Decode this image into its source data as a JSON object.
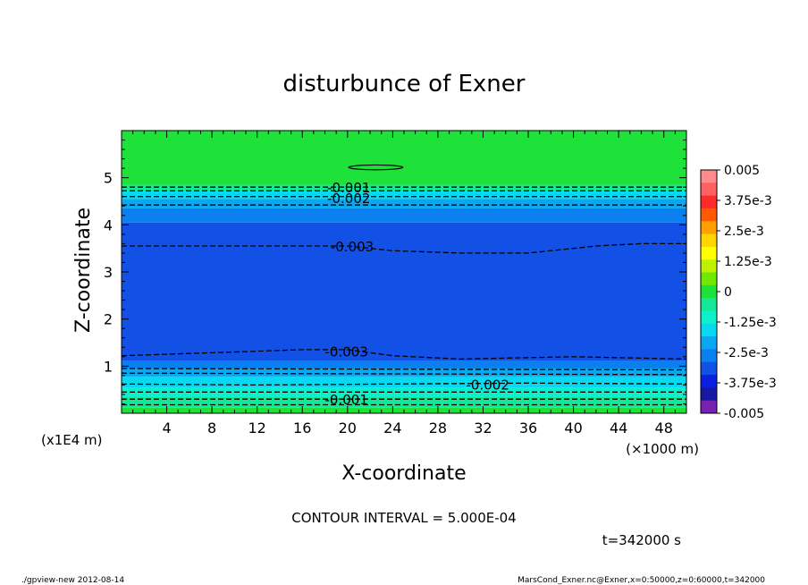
{
  "chart_data": {
    "type": "heatmap",
    "title": "disturbunce of Exner",
    "xlabel": "X-coordinate",
    "ylabel": "Z-coordinate",
    "x_unit": "(×1000 m)",
    "y_unit": "(x1E4 m)",
    "xlim": [
      0,
      50
    ],
    "ylim": [
      0,
      6
    ],
    "x_ticks": [
      4,
      8,
      12,
      16,
      20,
      24,
      28,
      32,
      36,
      40,
      44,
      48
    ],
    "y_ticks": [
      1,
      2,
      3,
      4,
      5
    ],
    "x_tick_labels": [
      "4",
      "8",
      "12",
      "16",
      "20",
      "24",
      "28",
      "32",
      "36",
      "40",
      "44",
      "48"
    ],
    "y_tick_labels": [
      "1",
      "2",
      "3",
      "4",
      "5"
    ],
    "layers": [
      {
        "z_from": 0.0,
        "z_to": 0.12,
        "color": "#1ee23a"
      },
      {
        "z_from": 0.12,
        "z_to": 0.35,
        "color": "#12e896"
      },
      {
        "z_from": 0.35,
        "z_to": 0.55,
        "color": "#0ef0cc"
      },
      {
        "z_from": 0.55,
        "z_to": 0.78,
        "color": "#08d8f0"
      },
      {
        "z_from": 0.78,
        "z_to": 0.95,
        "color": "#0aa8f0"
      },
      {
        "z_from": 0.95,
        "z_to": 1.12,
        "color": "#0a80f0"
      },
      {
        "z_from": 1.12,
        "z_to": 4.05,
        "color": "#1250e6"
      },
      {
        "z_from": 4.05,
        "z_to": 4.35,
        "color": "#0a80f0"
      },
      {
        "z_from": 4.35,
        "z_to": 4.55,
        "color": "#0aa8f0"
      },
      {
        "z_from": 4.55,
        "z_to": 4.72,
        "color": "#08d8f0"
      },
      {
        "z_from": 4.72,
        "z_to": 4.85,
        "color": "#12e896"
      },
      {
        "z_from": 4.85,
        "z_to": 6.0,
        "color": "#1ee23a"
      }
    ],
    "contours": [
      {
        "label": "-0.003",
        "label_x": 18.5,
        "label_z": 3.55,
        "style": "dashed",
        "points": [
          [
            0,
            3.55
          ],
          [
            10,
            3.55
          ],
          [
            20,
            3.55
          ],
          [
            24,
            3.45
          ],
          [
            30,
            3.4
          ],
          [
            36,
            3.4
          ],
          [
            42,
            3.55
          ],
          [
            46,
            3.6
          ],
          [
            50,
            3.6
          ]
        ]
      },
      {
        "label": "-0.003",
        "label_x": 18.0,
        "label_z": 1.32,
        "style": "dashed",
        "points": [
          [
            0,
            1.22
          ],
          [
            10,
            1.3
          ],
          [
            16,
            1.35
          ],
          [
            20,
            1.35
          ],
          [
            24,
            1.22
          ],
          [
            30,
            1.15
          ],
          [
            40,
            1.2
          ],
          [
            50,
            1.15
          ]
        ]
      },
      {
        "label": "-0.002",
        "label_x": 30.5,
        "label_z": 0.62,
        "style": "dashed",
        "points": [
          [
            0,
            0.62
          ],
          [
            12,
            0.6
          ],
          [
            24,
            0.62
          ],
          [
            36,
            0.64
          ],
          [
            50,
            0.62
          ]
        ]
      },
      {
        "label": "-0.001",
        "label_x": 18.0,
        "label_z": 0.3,
        "style": "dashed",
        "points": [
          [
            0,
            0.3
          ],
          [
            50,
            0.3
          ]
        ]
      },
      {
        "label": "-0.001",
        "label_x": 18.2,
        "label_z": 4.8,
        "style": "dashed",
        "points": [
          [
            0,
            4.8
          ],
          [
            50,
            4.8
          ]
        ]
      },
      {
        "label": "-0.002",
        "label_x": 18.2,
        "label_z": 4.58,
        "style": "dashed",
        "points": [
          [
            0,
            4.6
          ],
          [
            50,
            4.6
          ]
        ]
      },
      {
        "label": "",
        "style": "dashed",
        "points": [
          [
            0,
            4.42
          ],
          [
            50,
            4.42
          ]
        ]
      },
      {
        "label": "",
        "style": "dashed",
        "points": [
          [
            0,
            4.72
          ],
          [
            50,
            4.72
          ]
        ]
      },
      {
        "label": "",
        "style": "dashed",
        "points": [
          [
            0,
            0.18
          ],
          [
            50,
            0.18
          ]
        ]
      },
      {
        "label": "",
        "style": "dashed",
        "points": [
          [
            0,
            0.45
          ],
          [
            50,
            0.45
          ]
        ]
      },
      {
        "label": "",
        "style": "dashed",
        "points": [
          [
            0,
            0.85
          ],
          [
            50,
            0.82
          ]
        ]
      },
      {
        "label": "",
        "style": "dashed",
        "points": [
          [
            0,
            0.95
          ],
          [
            50,
            0.92
          ]
        ]
      }
    ],
    "ellipse": {
      "cx": 22.5,
      "cz": 5.22,
      "rx": 2.4,
      "rz": 0.05
    },
    "colorbar": {
      "labels": [
        "0.005",
        "3.75e-3",
        "2.5e-3",
        "1.25e-3",
        "0",
        "-1.25e-3",
        "-2.5e-3",
        "-3.75e-3",
        "-0.005"
      ],
      "colors": [
        "#ff8c8c",
        "#ff6060",
        "#ff2a2a",
        "#ff5a00",
        "#ffa000",
        "#ffd400",
        "#ffff00",
        "#bff000",
        "#70e800",
        "#1ee23a",
        "#12e896",
        "#0ef0cc",
        "#08d8f0",
        "#0aa8f0",
        "#0a80f0",
        "#1250e6",
        "#0a20e0",
        "#1818a0",
        "#7820b0"
      ]
    },
    "contour_interval_text": "CONTOUR INTERVAL = 5.000E-04",
    "time_text": "t=342000 s"
  },
  "footer": {
    "left": "./gpview-new   2012-08-14",
    "right": "MarsCond_Exner.nc@Exner,x=0:50000,z=0:60000,t=342000"
  }
}
